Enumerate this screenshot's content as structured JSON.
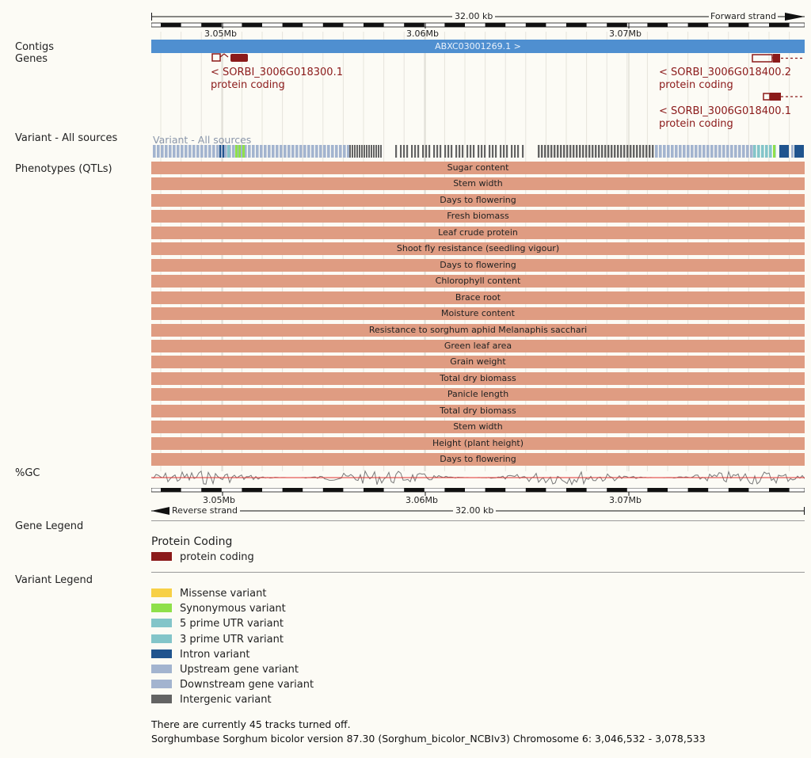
{
  "ruler_top": {
    "length_label": "32.00 kb",
    "strand_label": "Forward strand",
    "ticks": [
      "3.05Mb",
      "3.06Mb",
      "3.07Mb"
    ]
  },
  "ruler_bottom": {
    "length_label": "32.00 kb",
    "strand_label": "Reverse strand",
    "ticks": [
      "3.05Mb",
      "3.06Mb",
      "3.07Mb"
    ]
  },
  "tracks": {
    "contigs": "Contigs",
    "genes": "Genes",
    "variant": "Variant - All sources",
    "variant_overlay": "Variant - All sources",
    "phenotypes": "Phenotypes (QTLs)",
    "gc": "%GC",
    "gene_legend": "Gene Legend",
    "variant_legend": "Variant Legend"
  },
  "contig": {
    "label": "ABXC03001269.1 >"
  },
  "genes": [
    {
      "name": "< SORBI_3006G018300.1",
      "biotype": "protein coding"
    },
    {
      "name": "< SORBI_3006G018400.2",
      "biotype": "protein coding"
    },
    {
      "name": "< SORBI_3006G018400.1",
      "biotype": "protein coding"
    }
  ],
  "qtls": [
    "Sugar content",
    "Stem width",
    "Days to flowering",
    "Fresh biomass",
    "Leaf crude protein",
    "Shoot fly resistance (seedling vigour)",
    "Days to flowering",
    "Chlorophyll content",
    "Brace root",
    "Moisture content",
    "Resistance to sorghum aphid Melanaphis sacchari",
    "Green leaf area",
    "Grain weight",
    "Total dry biomass",
    "Panicle length",
    "Total dry biomass",
    "Stem width",
    "Height (plant height)",
    "Days to flowering"
  ],
  "gene_legend": {
    "title": "Protein Coding",
    "items": [
      {
        "label": "protein coding",
        "color": "#8b1a1a"
      }
    ]
  },
  "variant_legend": {
    "items": [
      {
        "label": "Missense variant",
        "color": "#f7d046"
      },
      {
        "label": "Synonymous variant",
        "color": "#8fe04a"
      },
      {
        "label": "5 prime UTR variant",
        "color": "#83c5c9"
      },
      {
        "label": "3 prime UTR variant",
        "color": "#83c5c9"
      },
      {
        "label": "Intron variant",
        "color": "#20548e"
      },
      {
        "label": "Upstream gene variant",
        "color": "#a3b4cf"
      },
      {
        "label": "Downstream gene variant",
        "color": "#a3b4cf"
      },
      {
        "label": "Intergenic variant",
        "color": "#636363"
      }
    ]
  },
  "footer": {
    "tracks_off": "There are currently 45 tracks turned off.",
    "assembly": "Sorghumbase Sorghum bicolor version 87.30 (Sorghum_bicolor_NCBIv3) Chromosome 6: 3,046,532 - 3,078,533"
  },
  "colors": {
    "contig": "#4f8fd0",
    "gene": "#8b1a1a",
    "qtl": "#df9c82",
    "gc_line": "#777777",
    "gc_mid": "#e03030"
  }
}
